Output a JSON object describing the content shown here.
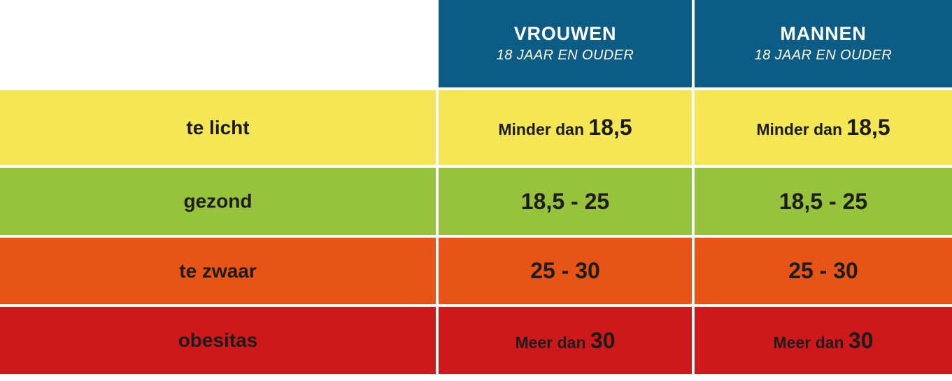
{
  "colors": {
    "header_bg": "#0d5c85",
    "header_text": "#ffffff",
    "body_text": "#1d1d1b",
    "background": "#ffffff",
    "row_yellow": "#f5e656",
    "row_green": "#97c23d",
    "row_orange": "#e65417",
    "row_red": "#cd191c"
  },
  "table": {
    "columns": [
      {
        "title": "VROUWEN",
        "subtitle": "18 JAAR EN OUDER"
      },
      {
        "title": "MANNEN",
        "subtitle": "18 JAAR EN OUDER"
      }
    ],
    "rows": [
      {
        "label": "te licht",
        "color": "#f5e656",
        "cells": [
          {
            "prefix": "Minder dan ",
            "value": "18,5"
          },
          {
            "prefix": "Minder dan ",
            "value": "18,5"
          }
        ]
      },
      {
        "label": "gezond",
        "color": "#97c23d",
        "cells": [
          {
            "prefix": "",
            "value": "18,5 - 25"
          },
          {
            "prefix": "",
            "value": "18,5 - 25"
          }
        ]
      },
      {
        "label": "te zwaar",
        "color": "#e65417",
        "cells": [
          {
            "prefix": "",
            "value": "25 - 30"
          },
          {
            "prefix": "",
            "value": "25 - 30"
          }
        ]
      },
      {
        "label": "obesitas",
        "color": "#cd191c",
        "cells": [
          {
            "prefix": "Meer dan ",
            "value": "30"
          },
          {
            "prefix": "Meer dan ",
            "value": "30"
          }
        ]
      }
    ]
  },
  "chart_data": {
    "type": "table",
    "title": "",
    "columns": [
      "",
      "VROUWEN 18 JAAR EN OUDER",
      "MANNEN 18 JAAR EN OUDER"
    ],
    "rows": [
      [
        "te licht",
        "Minder dan 18,5",
        "Minder dan 18,5"
      ],
      [
        "gezond",
        "18,5 - 25",
        "18,5 - 25"
      ],
      [
        "te zwaar",
        "25 - 30",
        "25 - 30"
      ],
      [
        "obesitas",
        "Meer dan 30",
        "Meer dan 30"
      ]
    ],
    "row_colors": [
      "#f5e656",
      "#97c23d",
      "#e65417",
      "#cd191c"
    ],
    "header_color": "#0d5c85"
  }
}
